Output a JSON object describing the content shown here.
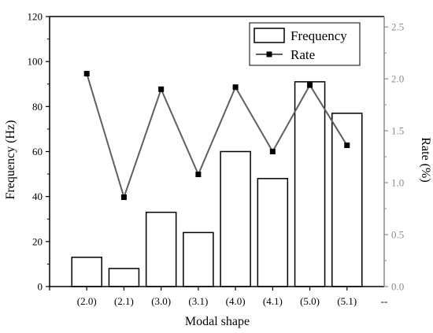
{
  "chart_data": {
    "type": "bar",
    "categories": [
      "(2.0)",
      "(2.1)",
      "(3.0)",
      "(3.1)",
      "(4.0)",
      "(4.1)",
      "(5.0)",
      "(5.1)"
    ],
    "series": [
      {
        "name": "Frequency",
        "type": "bar",
        "axis": "left",
        "values": [
          13,
          8,
          33,
          24,
          60,
          48,
          91,
          77
        ]
      },
      {
        "name": "Rate",
        "type": "line",
        "axis": "right",
        "values": [
          2.05,
          0.86,
          1.9,
          1.08,
          1.92,
          1.3,
          1.94,
          1.36
        ]
      }
    ],
    "xlabel": "Modal shape",
    "ylabel": "Frequency (Hz)",
    "y2label": "Rate (%)",
    "ylim": [
      0,
      120
    ],
    "y2lim": [
      0,
      2.6
    ],
    "yticks": [
      "0",
      "20",
      "40",
      "60",
      "80",
      "100",
      "120"
    ],
    "y2ticks": [
      "0.0",
      "0.5",
      "1.0",
      "1.5",
      "2.0",
      "2.5"
    ],
    "x_extra_tick": "--",
    "grid": false,
    "legend_position": "top-right",
    "colors": {
      "bar_fill": "#ffffff",
      "bar_stroke": "#000000",
      "line": "#5f5f5f",
      "marker": "#000000",
      "right_axis": "#8a8a8a",
      "axis": "#000000"
    }
  }
}
